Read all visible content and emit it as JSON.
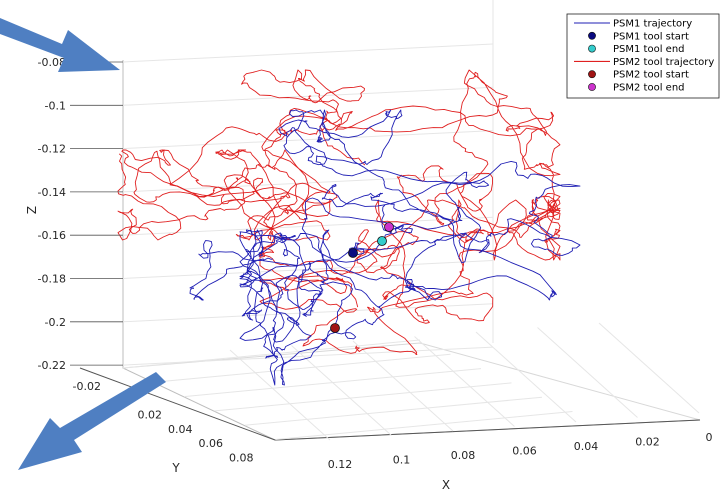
{
  "chart_data": {
    "type": "line3d",
    "title": "",
    "xlabel": "X",
    "ylabel": "Y",
    "zlabel": "Z",
    "x_ticks": [
      "0.12",
      "0.1",
      "0.08",
      "0.06",
      "0.04",
      "0.02",
      "0"
    ],
    "y_ticks": [
      "-0.02",
      "0",
      "0.02",
      "0.04",
      "0.06",
      "0.08"
    ],
    "z_ticks": [
      "-0.08",
      "-0.1",
      "-0.12",
      "-0.14",
      "-0.16",
      "-0.18",
      "-0.2",
      "-0.22"
    ],
    "grid": true,
    "legend_position": "top-right",
    "legend": [
      {
        "label": "PSM1 trajectory",
        "kind": "line",
        "color": "#1f1fb4"
      },
      {
        "label": "PSM1 tool start",
        "kind": "marker",
        "color": "#0a0a80"
      },
      {
        "label": "PSM1 tool end",
        "kind": "marker",
        "color": "#33cccc"
      },
      {
        "label": "PSM2 tool trajectory",
        "kind": "line",
        "color": "#e02020"
      },
      {
        "label": "PSM2 tool start",
        "kind": "marker",
        "color": "#a01414"
      },
      {
        "label": "PSM2 tool end",
        "kind": "marker",
        "color": "#cc33cc"
      }
    ],
    "series": [
      {
        "name": "PSM1 trajectory",
        "color": "#1f1fb4"
      },
      {
        "name": "PSM2 tool trajectory",
        "color": "#e02020"
      }
    ],
    "markers": [
      {
        "name": "PSM1 tool start",
        "color": "#0a0a80",
        "x": 0.085,
        "y": 0.02,
        "z": -0.167
      },
      {
        "name": "PSM1 tool end",
        "color": "#33cccc",
        "x": 0.07,
        "y": 0.01,
        "z": -0.162
      },
      {
        "name": "PSM2 tool start",
        "color": "#a01414",
        "x": 0.095,
        "y": 0.035,
        "z": -0.203
      },
      {
        "name": "PSM2 tool end",
        "color": "#cc33cc",
        "x": 0.065,
        "y": 0.01,
        "z": -0.157
      }
    ]
  },
  "annotations": {
    "arrow_color": "#4f7fc2"
  }
}
